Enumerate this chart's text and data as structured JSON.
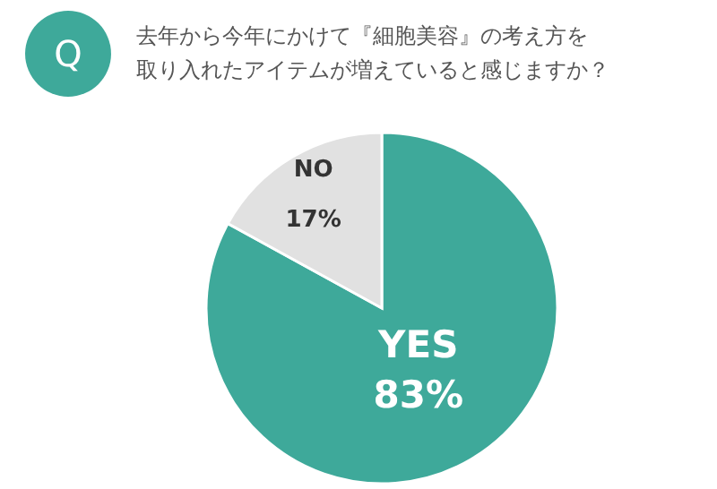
{
  "chart_data": {
    "type": "pie",
    "title": "去年から今年にかけて『細胞美容』の考え方を取り入れたアイテムが増えていると感じますか？",
    "annotations": [
      "Q"
    ],
    "categories": [
      "YES",
      "NO"
    ],
    "values": [
      83,
      17
    ],
    "colors": [
      "#3ea99a",
      "#e1e1e1"
    ],
    "value_labels": [
      "83%",
      "17%"
    ]
  }
}
